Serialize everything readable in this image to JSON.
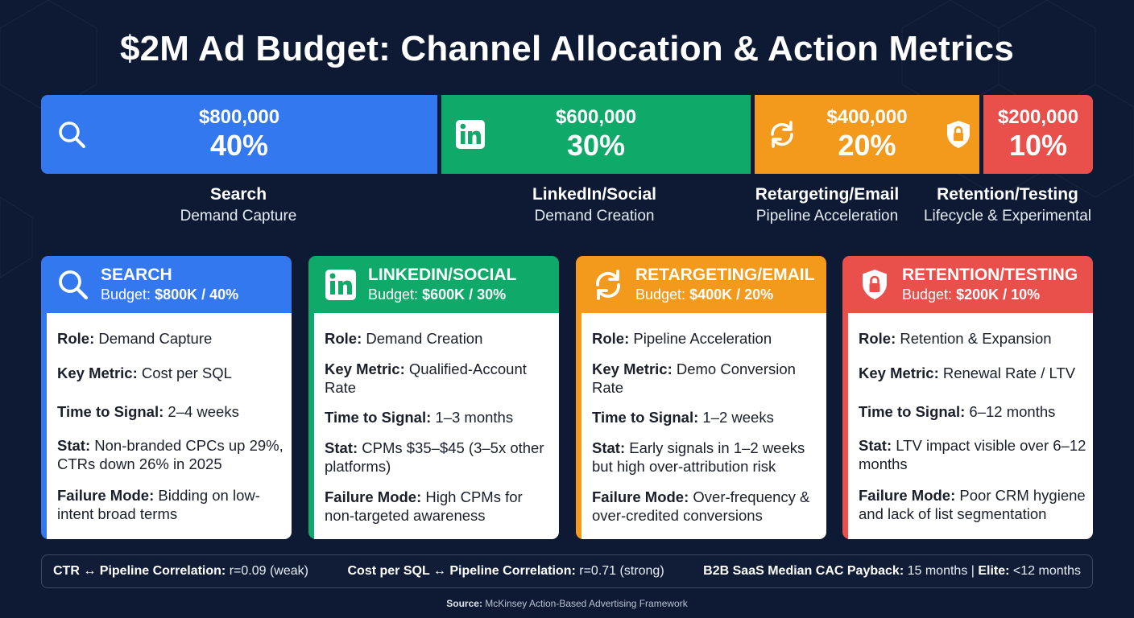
{
  "title": "$2M Ad Budget: Channel Allocation & Action Metrics",
  "colors": {
    "background": "#0e1a33",
    "search": "#3478f0",
    "social": "#0faa6a",
    "retargeting": "#f39a1c",
    "retention": "#e9504c"
  },
  "allocation": [
    {
      "amount": "$800,000",
      "percent": "40%",
      "share": 0.4,
      "icon": "search-icon",
      "name": "Search",
      "role": "Demand Capture"
    },
    {
      "amount": "$600,000",
      "percent": "30%",
      "share": 0.3,
      "icon": "linkedin-icon",
      "name": "LinkedIn/Social",
      "role": "Demand Creation"
    },
    {
      "amount": "$400,000",
      "percent": "20%",
      "share": 0.2,
      "icon": "refresh-icon",
      "icon2": "shield-lock-icon",
      "name": "Retargeting/Email",
      "role": "Pipeline Acceleration"
    },
    {
      "amount": "$200,000",
      "percent": "10%",
      "share": 0.1,
      "name": "Retention/Testing",
      "role": "Lifecycle & Experimental"
    }
  ],
  "cards": [
    {
      "title": "SEARCH",
      "budget_label": "Budget: ",
      "budget_value": "$800K / 40%",
      "icon": "search-icon",
      "role_label": "Role:",
      "role": " Demand Capture",
      "metric_label": "Key Metric:",
      "metric": " Cost per SQL",
      "time_label": "Time to Signal:",
      "time": " 2–4 weeks",
      "stat_label": "Stat:",
      "stat": " Non-branded CPCs up 29%, CTRs down 26% in 2025",
      "failure_label": "Failure Mode:",
      "failure": " Bidding on low-intent broad terms"
    },
    {
      "title": "LINKEDIN/SOCIAL",
      "budget_label": "Budget: ",
      "budget_value": "$600K / 30%",
      "icon": "linkedin-icon",
      "role_label": "Role:",
      "role": " Demand Creation",
      "metric_label": "Key Metric:",
      "metric": " Qualified-Account Rate",
      "time_label": "Time to Signal:",
      "time": " 1–3 months",
      "stat_label": "Stat:",
      "stat": " CPMs $35–$45 (3–5x other platforms)",
      "failure_label": "Failure Mode:",
      "failure": " High CPMs for non-targeted awareness"
    },
    {
      "title": "RETARGETING/EMAIL",
      "budget_label": "Budget: ",
      "budget_value": "$400K / 20%",
      "icon": "refresh-icon",
      "role_label": "Role:",
      "role": " Pipeline Acceleration",
      "metric_label": "Key Metric:",
      "metric": " Demo Conversion Rate",
      "time_label": "Time to Signal:",
      "time": " 1–2 weeks",
      "stat_label": "Stat:",
      "stat": " Early signals in 1–2 weeks but high over-attribution risk",
      "failure_label": "Failure Mode:",
      "failure": " Over-frequency & over-credited conversions"
    },
    {
      "title": "RETENTION/TESTING",
      "budget_label": "Budget: ",
      "budget_value": "$200K / 10%",
      "icon": "shield-lock-icon",
      "role_label": "Role:",
      "role": " Retention & Expansion",
      "metric_label": "Key Metric:",
      "metric": " Renewal Rate / LTV",
      "time_label": "Time to Signal:",
      "time": " 6–12 months",
      "stat_label": "Stat:",
      "stat": " LTV impact visible over 6–12 months",
      "failure_label": "Failure Mode:",
      "failure": " Poor CRM hygiene and lack of list segmentation"
    }
  ],
  "metrics": {
    "ctr_label": "CTR ↔ Pipeline Correlation:",
    "ctr_value": " r=0.09 (weak)",
    "cps_label": "Cost per SQL ↔ Pipeline Correlation:",
    "cps_value": " r=0.71 (strong)",
    "cac_label": "B2B SaaS Median CAC Payback:",
    "cac_value": " 15 months | ",
    "elite_label": "Elite:",
    "elite_value": " <12 months"
  },
  "source": {
    "label": "Source:",
    "text": " McKinsey Action-Based Advertising Framework"
  }
}
